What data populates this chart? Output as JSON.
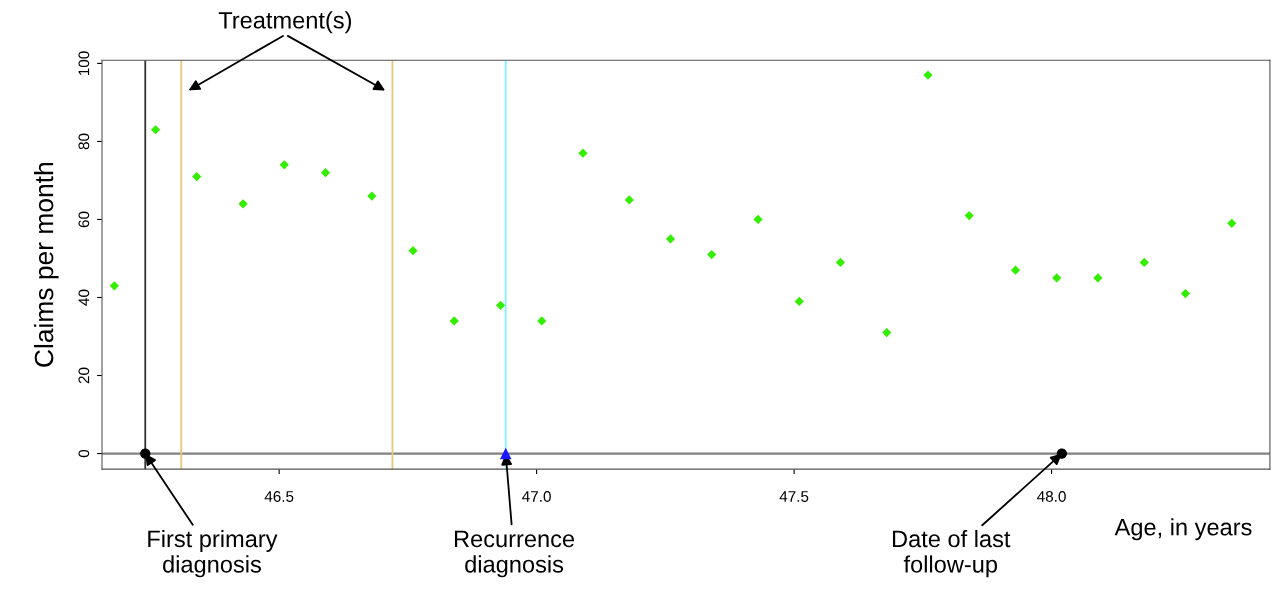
{
  "chart_data": {
    "type": "scatter",
    "xlabel": "Age, in years",
    "ylabel": "Claims per month",
    "series": [
      {
        "color": "#33ee00",
        "marker": "diamond",
        "x": [
          46.18,
          46.26,
          46.34,
          46.43,
          46.51,
          46.59,
          46.68,
          46.76,
          46.84,
          46.93,
          47.01,
          47.09,
          47.18,
          47.26,
          47.34,
          47.43,
          47.51,
          47.59,
          47.68,
          47.76,
          47.84,
          47.93,
          48.01,
          48.09,
          48.18,
          48.26,
          48.35
        ],
        "values": [
          43,
          83,
          71,
          64,
          74,
          72,
          66,
          52,
          34,
          38,
          34,
          77,
          65,
          55,
          51,
          60,
          39,
          49,
          31,
          97,
          61,
          47,
          45,
          45,
          49,
          41,
          59
        ]
      },
      {
        "color": "#000000",
        "marker": "circle",
        "x": [
          46.24,
          48.02
        ],
        "values": [
          0,
          0
        ]
      },
      {
        "color": "#1a1aff",
        "marker": "triangle",
        "x": [
          46.94
        ],
        "values": [
          0
        ]
      }
    ],
    "xlim": [
      46.156,
      48.424
    ],
    "ylim": [
      -4,
      100.8
    ],
    "xticks": [
      46.5,
      {
        "value": 47,
        "label": "47.0"
      },
      47.5,
      {
        "value": 48,
        "label": "48.0"
      }
    ],
    "yticks": [
      0,
      20,
      40,
      60,
      80,
      100
    ],
    "ref_lines": [
      {
        "axis": "y",
        "value": 0,
        "color": "#808080"
      },
      {
        "axis": "x",
        "value": 46.24,
        "color": "#333333"
      },
      {
        "axis": "x",
        "value": 46.31,
        "color": "#e8c97a"
      },
      {
        "axis": "x",
        "value": 46.72,
        "color": "#e8c97a"
      },
      {
        "axis": "x",
        "value": 46.94,
        "color": "#7ff5ff"
      }
    ],
    "annotations": [
      "Treatment(s)",
      {
        "text": "First primary\ndiagnosis",
        "x": 46.24,
        "y": 0
      },
      {
        "text": "Recurrence\ndiagnosis",
        "x": 46.94,
        "y": 0
      },
      {
        "text": "Date of last\nfollow-up",
        "x": 48.02,
        "y": 0
      }
    ],
    "grid": false
  }
}
